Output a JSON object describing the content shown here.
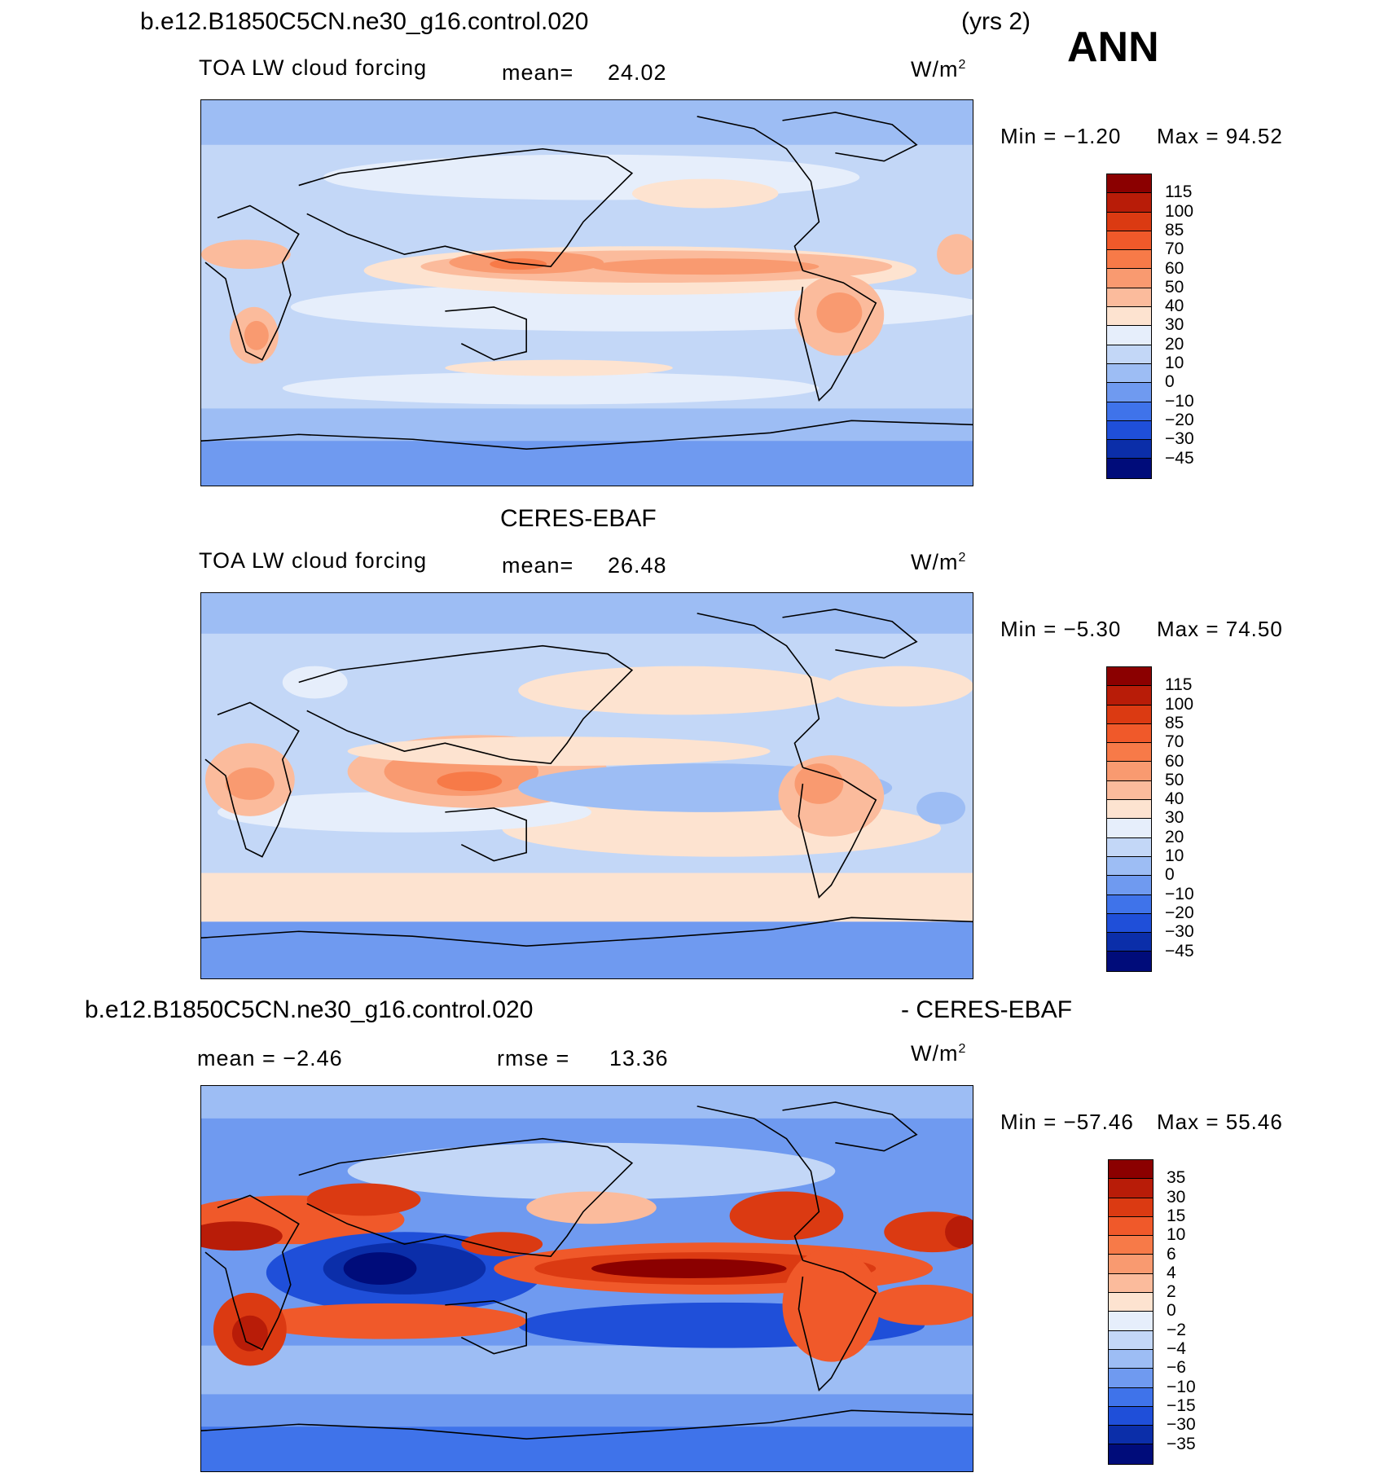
{
  "header": {
    "case_title": "b.e12.B1850C5CN.ne30_g16.control.020",
    "years": "(yrs 2)",
    "season": "ANN"
  },
  "panels": [
    {
      "id": "model",
      "title": "",
      "left_label": "TOA LW cloud forcing",
      "stat_label": "mean=",
      "stat_value": "24.02",
      "units": "W/m2",
      "min_text": "Min =   −1.20",
      "max_text": "Max =   94.52",
      "colorbar_labels": [
        "115",
        "100",
        "85",
        "70",
        "60",
        "50",
        "40",
        "30",
        "20",
        "10",
        "0",
        "−10",
        "−20",
        "−30",
        "−45"
      ],
      "colorbar_colors": [
        "#8b0000",
        "#b81c08",
        "#db3a12",
        "#f0592a",
        "#f77a48",
        "#f99a70",
        "#fbbb9c",
        "#fde3d0",
        "#e6eefb",
        "#c3d7f7",
        "#9dbdf4",
        "#6f9af0",
        "#3f73ea",
        "#1f4fd9",
        "#0b2ea9",
        "#000c7a"
      ]
    },
    {
      "id": "obs",
      "title": "CERES-EBAF",
      "left_label": "TOA LW cloud forcing",
      "stat_label": "mean=",
      "stat_value": "26.48",
      "units": "W/m2",
      "min_text": "Min =   −5.30",
      "max_text": "Max =   74.50",
      "colorbar_labels": [
        "115",
        "100",
        "85",
        "70",
        "60",
        "50",
        "40",
        "30",
        "20",
        "10",
        "0",
        "−10",
        "−20",
        "−30",
        "−45"
      ],
      "colorbar_colors": [
        "#8b0000",
        "#b81c08",
        "#db3a12",
        "#f0592a",
        "#f77a48",
        "#f99a70",
        "#fbbb9c",
        "#fde3d0",
        "#e6eefb",
        "#c3d7f7",
        "#9dbdf4",
        "#6f9af0",
        "#3f73ea",
        "#1f4fd9",
        "#0b2ea9",
        "#000c7a"
      ]
    },
    {
      "id": "diff",
      "title_left": "b.e12.B1850C5CN.ne30_g16.control.020",
      "title_right": "- CERES-EBAF",
      "left_label": "mean =   −2.46",
      "stat_label": "rmse =",
      "stat_value": "13.36",
      "units": "W/m2",
      "min_text": "Min = −57.46",
      "max_text": "Max =   55.46",
      "colorbar_labels": [
        "35",
        "30",
        "15",
        "10",
        "6",
        "4",
        "2",
        "0",
        "−2",
        "−4",
        "−6",
        "−10",
        "−15",
        "−30",
        "−35"
      ],
      "colorbar_colors": [
        "#8b0000",
        "#b81c08",
        "#db3a12",
        "#f0592a",
        "#f77a48",
        "#f99a70",
        "#fbbb9c",
        "#fde3d0",
        "#e6eefb",
        "#c3d7f7",
        "#9dbdf4",
        "#6f9af0",
        "#3f73ea",
        "#1f4fd9",
        "#0b2ea9",
        "#000c7a"
      ]
    }
  ]
}
